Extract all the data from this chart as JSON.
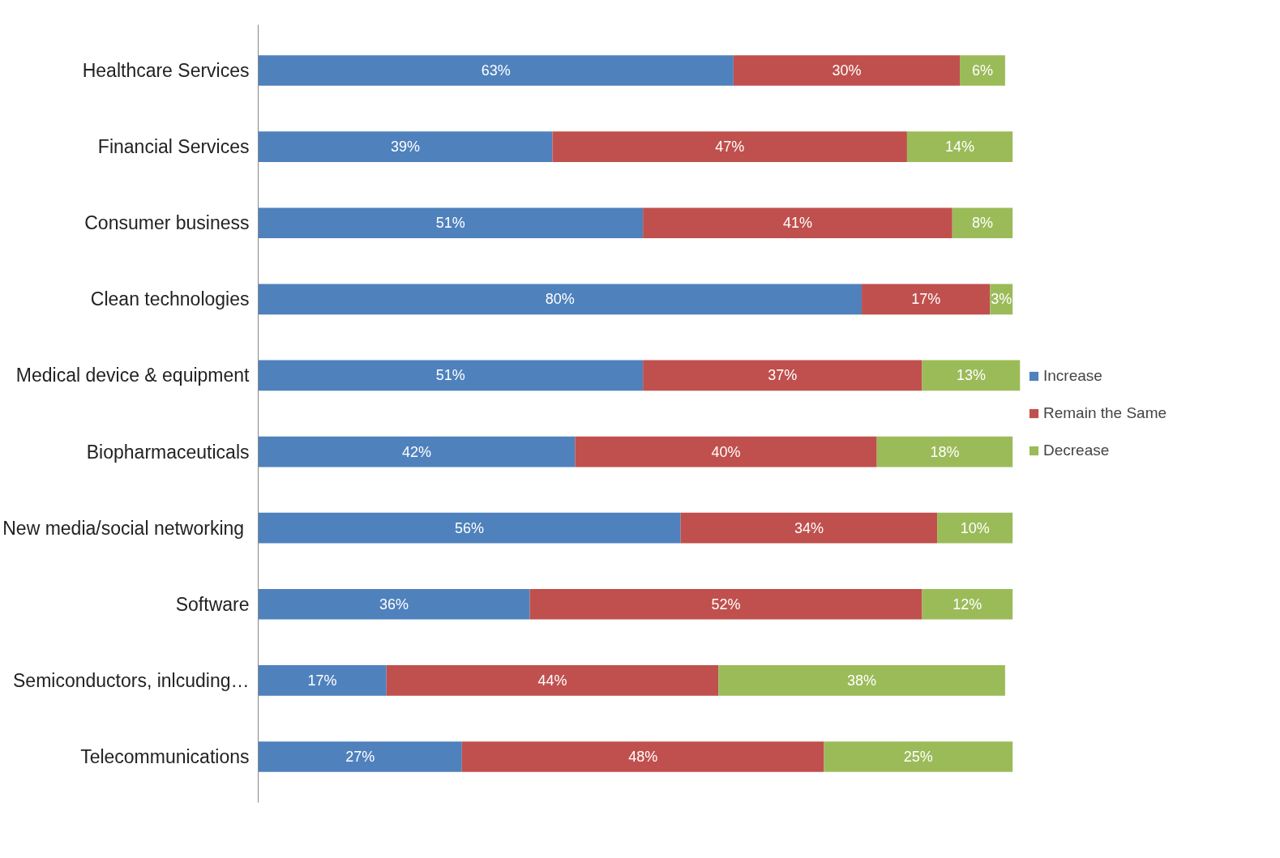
{
  "chart_data": {
    "type": "bar",
    "orientation": "horizontal",
    "stacked": true,
    "grid": false,
    "legend": "right",
    "tick_labels": "y",
    "categories": [
      "Healthcare Services",
      "Financial Services",
      "Consumer business",
      "Clean technologies",
      "Medical device & equipment",
      "Biopharmaceuticals",
      "New media/social  networking",
      "Software",
      "Semiconductors, inlcuding…",
      "Telecommunications"
    ],
    "series": [
      {
        "name": "Increase",
        "color": "#4f81bd",
        "values": [
          63,
          39,
          51,
          80,
          51,
          42,
          56,
          36,
          17,
          27
        ],
        "value_labels": [
          "63%",
          "39%",
          "51%",
          "80%",
          "51%",
          "42%",
          "56%",
          "36%",
          "17%",
          "27%"
        ]
      },
      {
        "name": "Remain the Same",
        "color": "#c0504d",
        "values": [
          30,
          47,
          41,
          17,
          37,
          40,
          34,
          52,
          44,
          48
        ],
        "value_labels": [
          "30%",
          "47%",
          "41%",
          "17%",
          "37%",
          "40%",
          "34%",
          "52%",
          "44%",
          "48%"
        ]
      },
      {
        "name": "Decrease",
        "color": "#9bbb59",
        "values": [
          6,
          14,
          8,
          3,
          13,
          18,
          10,
          12,
          38,
          25
        ],
        "value_labels": [
          "6%",
          "14%",
          "8%",
          "3%",
          "13%",
          "18%",
          "10%",
          "12%",
          "38%",
          "25%"
        ]
      }
    ]
  }
}
